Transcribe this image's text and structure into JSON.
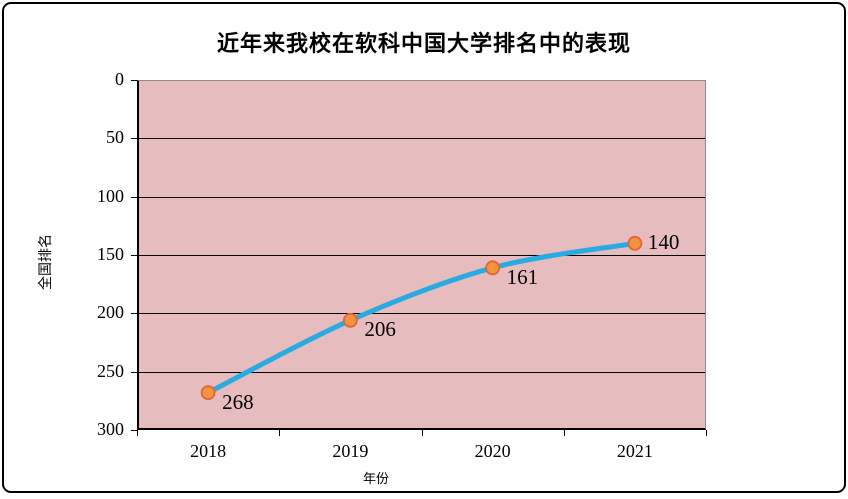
{
  "title": "近年来我校在软科中国大学排名中的表现",
  "chart_data": {
    "type": "line",
    "title": "近年来我校在软科中国大学排名中的表现",
    "categories": [
      "2018",
      "2019",
      "2020",
      "2021"
    ],
    "series": [
      {
        "name": "全国排名",
        "values": [
          268,
          206,
          161,
          140
        ]
      }
    ],
    "data_labels": [
      "268",
      "206",
      "161",
      "140"
    ],
    "xlabel": "年份",
    "ylabel": "全国排名",
    "ylim": [
      0,
      300
    ],
    "y_axis_inverted": true,
    "yticks": [
      0,
      50,
      100,
      150,
      200,
      250,
      300
    ],
    "grid": "horizontal-major",
    "legend": "none",
    "line_style": "smooth",
    "label_positions": [
      "below-right",
      "below-right",
      "below-right",
      "right"
    ],
    "colors": {
      "line": "#29ABE2",
      "marker_fill": "#F5923E",
      "marker_stroke": "#E0653C",
      "plot_background": "#E7BCBE",
      "gridline": "#000000",
      "text": "#000000",
      "frame_border": "#000000"
    }
  }
}
